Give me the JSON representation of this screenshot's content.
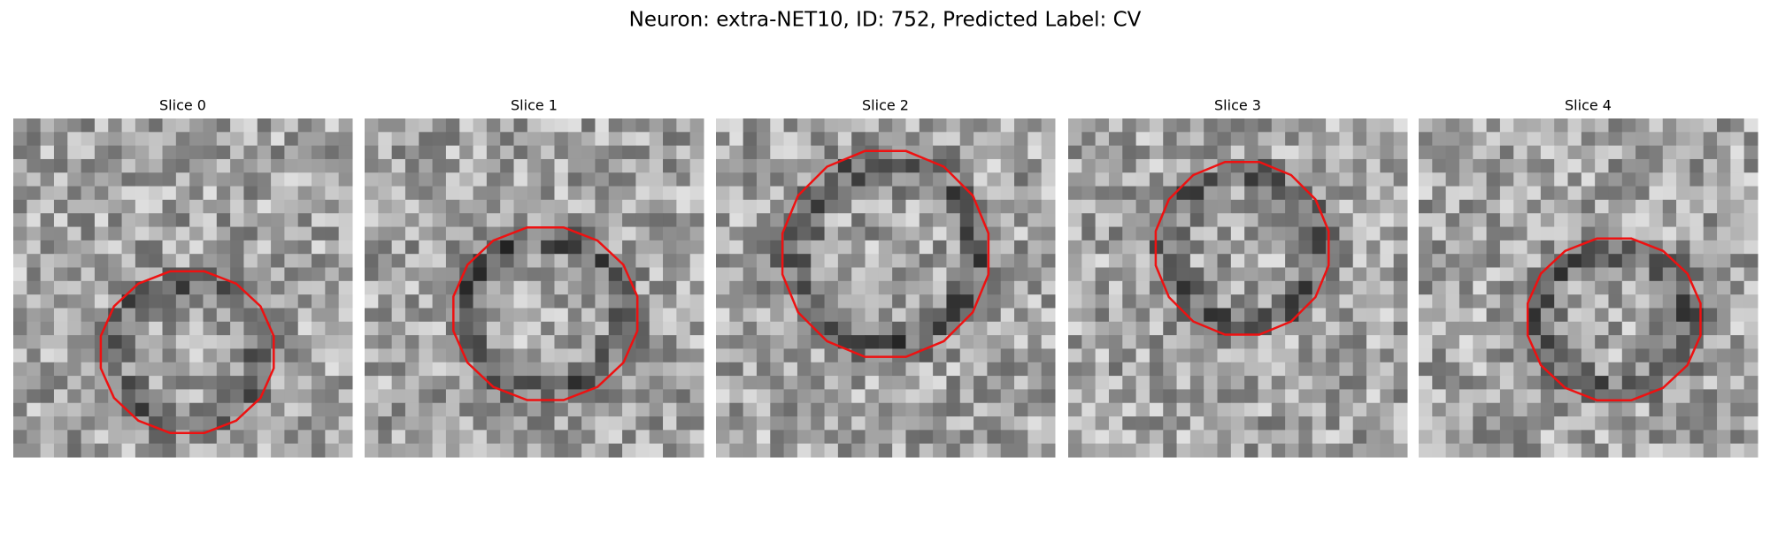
{
  "title": "Neuron: extra-NET10, ID: 752, Predicted Label: CV",
  "panels": [
    {
      "title": "Slice 0"
    },
    {
      "title": "Slice 1"
    },
    {
      "title": "Slice 2"
    },
    {
      "title": "Slice 3"
    },
    {
      "title": "Slice 4"
    }
  ]
}
